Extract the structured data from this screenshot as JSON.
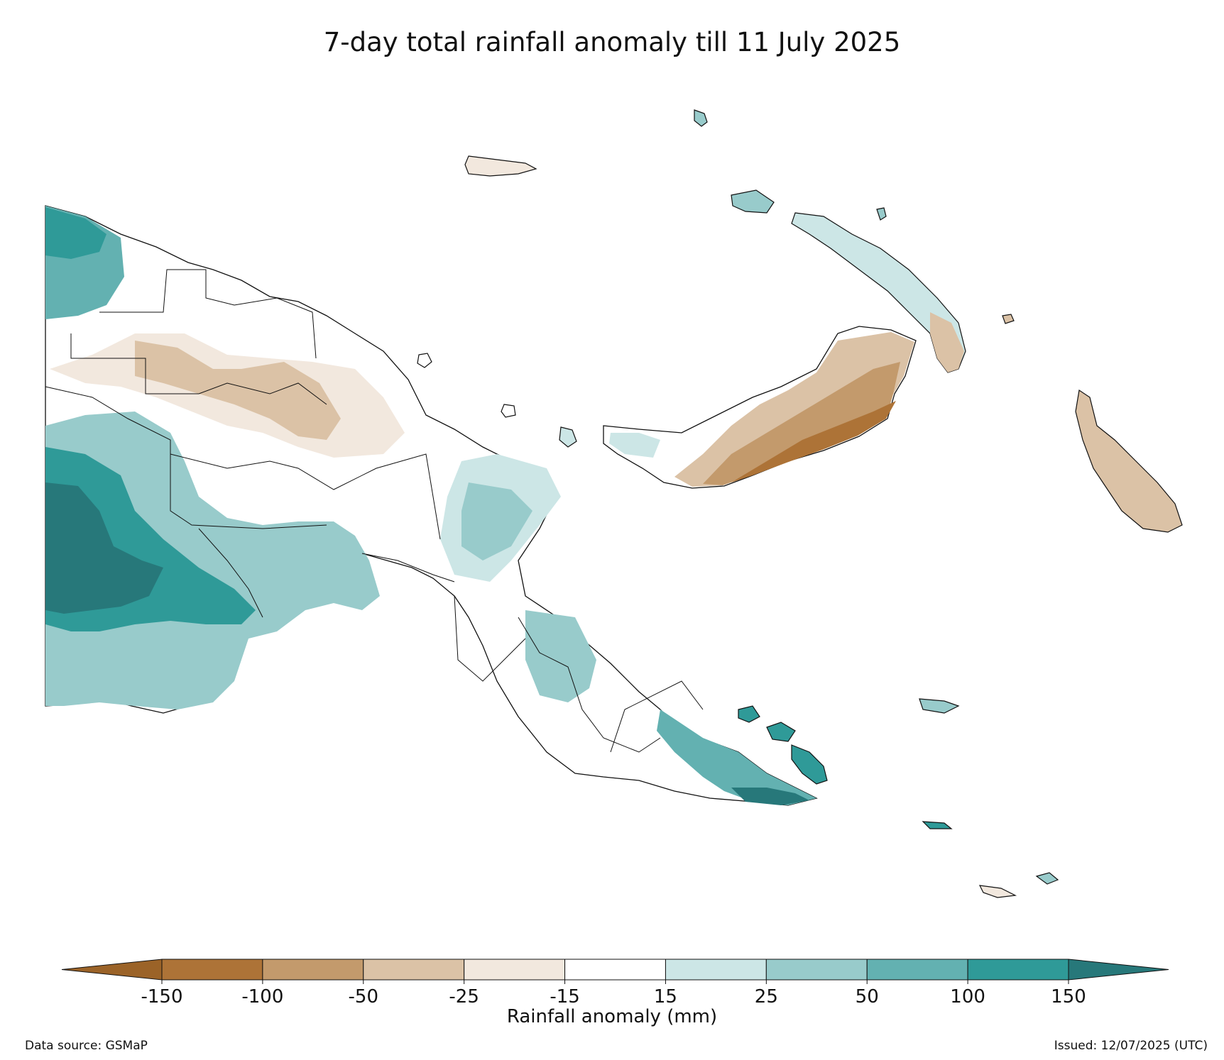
{
  "title": "7-day total rainfall anomaly till 11 July 2025",
  "colorbar": {
    "label": "Rainfall anomaly (mm)",
    "ticks": [
      "-150",
      "-100",
      "-50",
      "-25",
      "-15",
      "15",
      "25",
      "50",
      "100",
      "150"
    ],
    "under_color": "#9b6328",
    "over_color": "#27787a",
    "bins": [
      {
        "from": -150,
        "to": -100,
        "color": "#ad7337"
      },
      {
        "from": -100,
        "to": -50,
        "color": "#c39a6c"
      },
      {
        "from": -50,
        "to": -25,
        "color": "#dbc2a6"
      },
      {
        "from": -25,
        "to": -15,
        "color": "#f2e8de"
      },
      {
        "from": -15,
        "to": 15,
        "color": "#ffffff"
      },
      {
        "from": 15,
        "to": 25,
        "color": "#cce6e6"
      },
      {
        "from": 25,
        "to": 50,
        "color": "#98cbcb"
      },
      {
        "from": 50,
        "to": 100,
        "color": "#63b1b1"
      },
      {
        "from": 100,
        "to": 150,
        "color": "#2f9a98"
      }
    ]
  },
  "footer": {
    "source": "Data source: GSMaP",
    "issued": "Issued: 12/07/2025 (UTC)"
  }
}
